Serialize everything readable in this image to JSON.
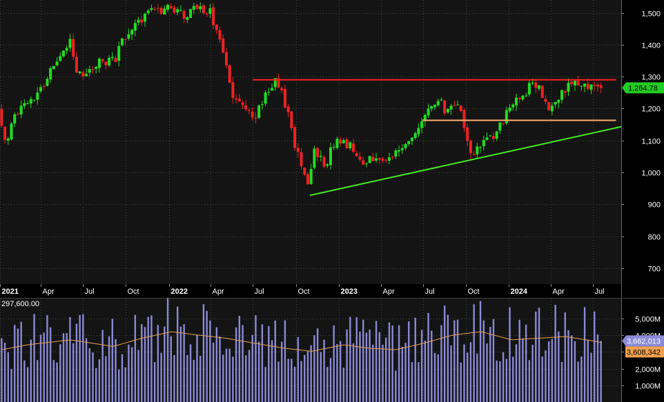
{
  "chart_data": {
    "type": "candlestick",
    "colors": {
      "background": "#141414",
      "panel_background": "#1a1a1a",
      "up": "#22dd22",
      "down": "#ee2222",
      "volume": "#8a8ad8",
      "volume_ma": "#f0a050",
      "resistance": "#ff2020",
      "support_mid": "#ffb070",
      "trendline": "#44ee22",
      "grid": "#4a4a4a",
      "axis_text": "#ffffff"
    },
    "price_axis": {
      "range": [
        650,
        1540
      ],
      "ticks": [
        "1,500",
        "1,400",
        "1,300",
        "1,200",
        "1,100",
        "1,000",
        "900",
        "800",
        "700"
      ],
      "tick_values": [
        1500,
        1400,
        1300,
        1200,
        1100,
        1000,
        900,
        800,
        700
      ]
    },
    "time_axis": {
      "start": "2021-01-04",
      "end": "2024-08-31",
      "labels": [
        {
          "text": "2021",
          "date": "2021-01-04",
          "year": true
        },
        {
          "text": "Apr",
          "date": "2021-04-01",
          "year": false
        },
        {
          "text": "Jul",
          "date": "2021-07-01",
          "year": false
        },
        {
          "text": "Oct",
          "date": "2021-10-01",
          "year": false
        },
        {
          "text": "2022",
          "date": "2022-01-03",
          "year": true
        },
        {
          "text": "Apr",
          "date": "2022-04-01",
          "year": false
        },
        {
          "text": "Jul",
          "date": "2022-07-01",
          "year": false
        },
        {
          "text": "Oct",
          "date": "2022-10-03",
          "year": false
        },
        {
          "text": "2023",
          "date": "2023-01-02",
          "year": true
        },
        {
          "text": "Apr",
          "date": "2023-04-03",
          "year": false
        },
        {
          "text": "Jul",
          "date": "2023-07-03",
          "year": false
        },
        {
          "text": "Oct",
          "date": "2023-10-02",
          "year": false
        },
        {
          "text": "2024",
          "date": "2024-01-02",
          "year": true
        },
        {
          "text": "Apr",
          "date": "2024-04-01",
          "year": false
        },
        {
          "text": "Jul",
          "date": "2024-07-01",
          "year": false
        }
      ]
    },
    "price_path": [
      [
        "2021-01-04",
        1200
      ],
      [
        "2021-01-20",
        1070
      ],
      [
        "2021-02-05",
        1180
      ],
      [
        "2021-03-01",
        1205
      ],
      [
        "2021-04-01",
        1250
      ],
      [
        "2021-05-10",
        1360
      ],
      [
        "2021-06-08",
        1420
      ],
      [
        "2021-06-25",
        1300
      ],
      [
        "2021-07-20",
        1320
      ],
      [
        "2021-08-20",
        1350
      ],
      [
        "2021-09-10",
        1345
      ],
      [
        "2021-10-01",
        1420
      ],
      [
        "2021-11-01",
        1480
      ],
      [
        "2021-12-01",
        1500
      ],
      [
        "2022-01-05",
        1520
      ],
      [
        "2022-02-01",
        1495
      ],
      [
        "2022-03-01",
        1505
      ],
      [
        "2022-04-01",
        1510
      ],
      [
        "2022-04-25",
        1420
      ],
      [
        "2022-05-25",
        1230
      ],
      [
        "2022-06-20",
        1190
      ],
      [
        "2022-07-10",
        1180
      ],
      [
        "2022-08-05",
        1260
      ],
      [
        "2022-08-25",
        1285
      ],
      [
        "2022-09-10",
        1230
      ],
      [
        "2022-09-30",
        1100
      ],
      [
        "2022-10-20",
        1010
      ],
      [
        "2022-11-01",
        940
      ],
      [
        "2022-11-15",
        1080
      ],
      [
        "2022-12-05",
        1020
      ],
      [
        "2023-01-03",
        1110
      ],
      [
        "2023-01-25",
        1090
      ],
      [
        "2023-02-20",
        1030
      ],
      [
        "2023-03-20",
        1050
      ],
      [
        "2023-04-20",
        1040
      ],
      [
        "2023-05-20",
        1080
      ],
      [
        "2023-06-20",
        1120
      ],
      [
        "2023-07-20",
        1200
      ],
      [
        "2023-08-10",
        1225
      ],
      [
        "2023-08-30",
        1180
      ],
      [
        "2023-09-15",
        1235
      ],
      [
        "2023-10-01",
        1150
      ],
      [
        "2023-10-20",
        1050
      ],
      [
        "2023-11-10",
        1090
      ],
      [
        "2023-12-01",
        1110
      ],
      [
        "2023-12-20",
        1160
      ],
      [
        "2024-01-10",
        1195
      ],
      [
        "2024-02-01",
        1240
      ],
      [
        "2024-03-01",
        1285
      ],
      [
        "2024-03-20",
        1240
      ],
      [
        "2024-04-10",
        1190
      ],
      [
        "2024-05-01",
        1250
      ],
      [
        "2024-06-01",
        1285
      ],
      [
        "2024-06-20",
        1270
      ],
      [
        "2024-07-10",
        1285
      ],
      [
        "2024-07-15",
        1265
      ]
    ],
    "lines": [
      {
        "name": "resistance",
        "color": "#ff2020",
        "from": [
          "2022-07-01",
          1290
        ],
        "to": [
          "2024-08-20",
          1290
        ]
      },
      {
        "name": "support",
        "color": "#ffb070",
        "from": [
          "2023-07-01",
          1163
        ],
        "to": [
          "2024-08-20",
          1163
        ]
      },
      {
        "name": "uptrend",
        "color": "#44ee22",
        "from": [
          "2022-11-01",
          928
        ],
        "to": [
          "2024-08-31",
          1143
        ]
      }
    ],
    "last_price": {
      "value": 1264.78,
      "label": "1,264.78"
    },
    "volume_axis": {
      "range": [
        0,
        6200000000
      ],
      "ticks": [
        "5,000M",
        "4,000M",
        "3,000M",
        "2,000M",
        "1,000M"
      ],
      "tick_values": [
        5000000000,
        4000000000,
        3000000000,
        2000000000,
        1000000000
      ]
    },
    "volume_level_label": "297,600.00",
    "volume_last": {
      "value": 3662013000,
      "label": "3,662,013"
    },
    "volume_ma_last": {
      "value": 3608342000,
      "label": "3,608,342"
    },
    "volume_profile": [
      [
        "2021-01-04",
        3.2
      ],
      [
        "2021-03-01",
        3.5
      ],
      [
        "2021-06-01",
        3.8
      ],
      [
        "2021-09-01",
        3.4
      ],
      [
        "2021-11-01",
        3.9
      ],
      [
        "2022-01-05",
        4.3
      ],
      [
        "2022-03-01",
        4.1
      ],
      [
        "2022-05-01",
        3.9
      ],
      [
        "2022-07-01",
        3.6
      ],
      [
        "2022-09-01",
        3.3
      ],
      [
        "2022-11-01",
        3.1
      ],
      [
        "2023-01-10",
        3.5
      ],
      [
        "2023-03-01",
        3.3
      ],
      [
        "2023-05-01",
        3.2
      ],
      [
        "2023-07-01",
        3.6
      ],
      [
        "2023-09-01",
        4.1
      ],
      [
        "2023-11-01",
        4.3
      ],
      [
        "2024-01-05",
        3.8
      ],
      [
        "2024-03-01",
        3.9
      ],
      [
        "2024-05-01",
        4.0
      ],
      [
        "2024-07-15",
        3.65
      ]
    ]
  }
}
